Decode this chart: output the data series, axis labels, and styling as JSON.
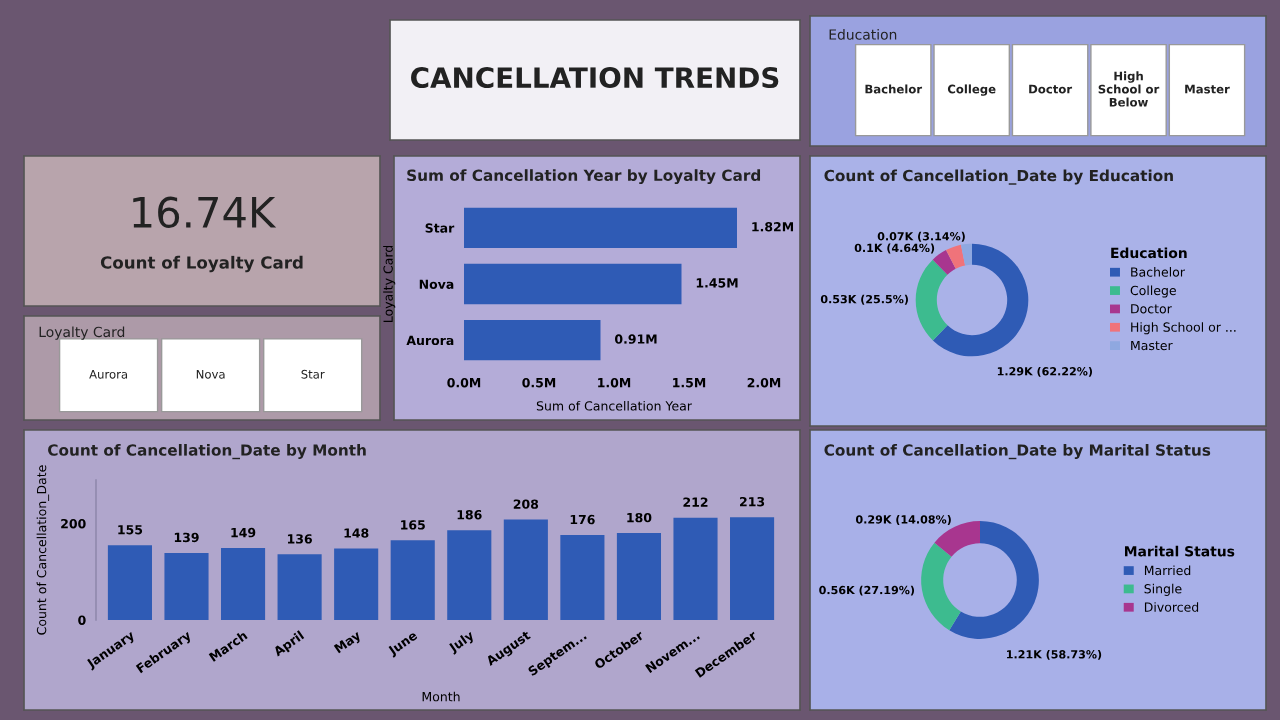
{
  "chart_data": [
    {
      "type": "other",
      "title": "CANCELLATION TRENDS"
    },
    {
      "type": "other",
      "title": "Education",
      "categories": [
        "Bachelor",
        "College",
        "Doctor",
        "High School or Below",
        "Master"
      ]
    },
    {
      "type": "other",
      "annotations": [
        "16.74K",
        "Count of Loyalty Card"
      ]
    },
    {
      "type": "other",
      "title": "Loyalty Card",
      "categories": [
        "Aurora",
        "Nova",
        "Star"
      ]
    },
    {
      "type": "bar",
      "orientation": "horizontal",
      "title": "Sum of Cancellation Year by Loyalty Card",
      "xlabel": "Sum of Cancellation Year",
      "ylabel": "Loyalty Card",
      "categories": [
        "Star",
        "Nova",
        "Aurora"
      ],
      "values": [
        1.82,
        1.45,
        0.91
      ],
      "value_labels": [
        "1.82M",
        "1.45M",
        "0.91M"
      ],
      "color": "#2f5bb5",
      "xlim": [
        0,
        2
      ],
      "xticks": [
        {
          "value": 0,
          "label": "0.0M"
        },
        {
          "value": 0.5,
          "label": "0.5M"
        },
        {
          "value": 1,
          "label": "1.0M"
        },
        {
          "value": 1.5,
          "label": "1.5M"
        },
        {
          "value": 2,
          "label": "2.0M"
        }
      ]
    },
    {
      "type": "donut",
      "title": "Count of Cancellation_Date by Education",
      "legend_title": "Education",
      "legend": "right",
      "categories": [
        "Bachelor",
        "College",
        "Doctor",
        "High School or ...",
        "Master"
      ],
      "values": [
        62.22,
        25.5,
        4.64,
        4.5,
        3.14
      ],
      "value_labels": [
        "1.29K (62.22%)",
        "0.53K (25.5%)",
        "0.1K (4.64%)",
        null,
        "0.07K (3.14%)"
      ],
      "colors": [
        "#2f5bb5",
        "#3dbb8f",
        "#a8368f",
        "#f0737a",
        "#8fa8e0"
      ]
    },
    {
      "type": "bar",
      "title": "Count of Cancellation_Date by Month",
      "xlabel": "Month",
      "ylabel": "Count of Cancellation_Date",
      "categories": [
        "January",
        "February",
        "March",
        "April",
        "May",
        "June",
        "July",
        "August",
        "Septem...",
        "October",
        "Novem...",
        "December"
      ],
      "values": [
        155,
        139,
        149,
        136,
        148,
        165,
        186,
        208,
        176,
        180,
        212,
        213
      ],
      "data_labels": true,
      "color": "#2f5bb5",
      "ylim": [
        0,
        290
      ],
      "yticks": [
        0,
        200
      ]
    },
    {
      "type": "donut",
      "title": "Count of Cancellation_Date by Marital Status",
      "legend_title": "Marital Status",
      "legend": "right",
      "categories": [
        "Married",
        "Single",
        "Divorced"
      ],
      "values": [
        58.73,
        27.19,
        14.08
      ],
      "value_labels": [
        "1.21K (58.73%)",
        "0.56K (27.19%)",
        "0.29K (14.08%)"
      ],
      "colors": [
        "#2f5bb5",
        "#3dbb8f",
        "#a8368f"
      ]
    }
  ]
}
